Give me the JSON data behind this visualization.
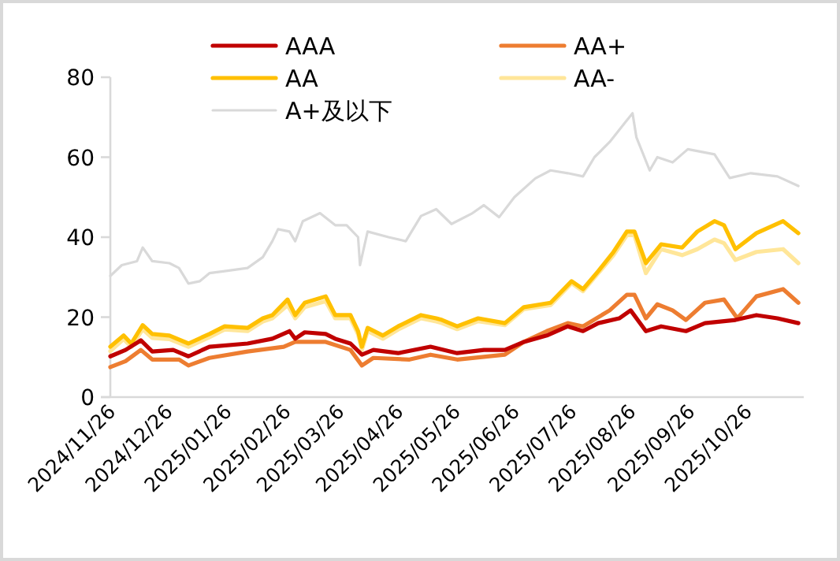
{
  "chart_data": {
    "type": "line",
    "legend": "top",
    "marker": "none",
    "line_style": "solid",
    "xlim": [
      "2024-11-26",
      "2025-11-24"
    ],
    "xticks": [
      {
        "value": "2024-11-26",
        "label": "2024/11/26"
      },
      {
        "value": "2024-12-26",
        "label": "2024/12/26"
      },
      {
        "value": "2025-01-26",
        "label": "2025/01/26"
      },
      {
        "value": "2025-02-26",
        "label": "2025/02/26"
      },
      {
        "value": "2025-03-26",
        "label": "2025/03/26"
      },
      {
        "value": "2025-04-26",
        "label": "2025/04/26"
      },
      {
        "value": "2025-05-26",
        "label": "2025/05/26"
      },
      {
        "value": "2025-06-26",
        "label": "2025/06/26"
      },
      {
        "value": "2025-07-26",
        "label": "2025/07/26"
      },
      {
        "value": "2025-08-26",
        "label": "2025/08/26"
      },
      {
        "value": "2025-09-26",
        "label": "2025/09/26"
      },
      {
        "value": "2025-10-26",
        "label": "2025/10/26"
      }
    ],
    "ylim": [
      0,
      80
    ],
    "yticks": [
      0,
      20,
      40,
      60,
      80
    ],
    "series": [
      {
        "name": "AAA",
        "color": "#c00000",
        "x": [
          "2024-11-26",
          "2024-12-04",
          "2024-12-12",
          "2024-12-18",
          "2024-12-29",
          "2025-01-06",
          "2025-01-17",
          "2025-02-06",
          "2025-02-19",
          "2025-02-28",
          "2025-03-03",
          "2025-03-08",
          "2025-03-19",
          "2025-03-24",
          "2025-04-01",
          "2025-04-07",
          "2025-04-13",
          "2025-04-26",
          "2025-05-13",
          "2025-05-27",
          "2025-06-10",
          "2025-06-21",
          "2025-07-01",
          "2025-07-13",
          "2025-07-24",
          "2025-08-01",
          "2025-08-09",
          "2025-08-20",
          "2025-08-26",
          "2025-09-03",
          "2025-09-11",
          "2025-09-24",
          "2025-10-04",
          "2025-10-20",
          "2025-10-31",
          "2025-11-11",
          "2025-11-22"
        ],
        "values": [
          10.2,
          11.8,
          14.2,
          11.4,
          11.8,
          10.2,
          12.6,
          13.4,
          14.6,
          16.5,
          14.6,
          16.2,
          15.8,
          14.6,
          13.4,
          10.6,
          11.8,
          11,
          12.6,
          11,
          11.8,
          11.8,
          13.8,
          15.4,
          17.7,
          16.5,
          18.5,
          19.7,
          21.7,
          16.5,
          17.7,
          16.5,
          18.5,
          19.3,
          20.5,
          19.7,
          18.5
        ]
      },
      {
        "name": "AA+",
        "color": "#ed7d31",
        "x": [
          "2024-11-26",
          "2024-12-04",
          "2024-12-12",
          "2024-12-18",
          "2025-01-01",
          "2025-01-06",
          "2025-01-17",
          "2025-02-06",
          "2025-02-25",
          "2025-03-03",
          "2025-03-19",
          "2025-04-01",
          "2025-04-07",
          "2025-04-13",
          "2025-05-02",
          "2025-05-13",
          "2025-05-27",
          "2025-06-21",
          "2025-07-01",
          "2025-07-13",
          "2025-07-24",
          "2025-08-01",
          "2025-08-15",
          "2025-08-24",
          "2025-08-28",
          "2025-09-03",
          "2025-09-09",
          "2025-09-17",
          "2025-09-24",
          "2025-10-04",
          "2025-10-14",
          "2025-10-21",
          "2025-10-31",
          "2025-11-14",
          "2025-11-22"
        ],
        "values": [
          7.5,
          9,
          11.8,
          9.4,
          9.4,
          7.9,
          9.8,
          11.4,
          12.6,
          13.8,
          13.8,
          11.8,
          7.9,
          9.8,
          9.4,
          10.6,
          9.4,
          10.6,
          13.8,
          16.5,
          18.5,
          17.7,
          21.7,
          25.6,
          25.6,
          19.7,
          23.2,
          21.7,
          19.3,
          23.6,
          24.4,
          19.7,
          25.2,
          27,
          23.6
        ]
      },
      {
        "name": "AA",
        "color": "#ffc000",
        "x": [
          "2024-11-26",
          "2024-12-03",
          "2024-12-07",
          "2024-12-13",
          "2024-12-18",
          "2024-12-27",
          "2025-01-06",
          "2025-01-17",
          "2025-01-25",
          "2025-02-06",
          "2025-02-14",
          "2025-02-19",
          "2025-02-27",
          "2025-03-03",
          "2025-03-08",
          "2025-03-19",
          "2025-03-24",
          "2025-04-01",
          "2025-04-05",
          "2025-04-07",
          "2025-04-10",
          "2025-04-18",
          "2025-04-26",
          "2025-05-08",
          "2025-05-16",
          "2025-05-19",
          "2025-05-27",
          "2025-06-07",
          "2025-06-21",
          "2025-07-01",
          "2025-07-15",
          "2025-07-26",
          "2025-08-01",
          "2025-08-09",
          "2025-08-17",
          "2025-08-24",
          "2025-08-28",
          "2025-09-03",
          "2025-09-11",
          "2025-09-22",
          "2025-09-30",
          "2025-10-09",
          "2025-10-14",
          "2025-10-20",
          "2025-10-31",
          "2025-11-14",
          "2025-11-22"
        ],
        "values": [
          12.6,
          15.4,
          13.4,
          18,
          15.8,
          15.4,
          13.4,
          15.8,
          17.7,
          17.3,
          19.7,
          20.5,
          24.4,
          20.5,
          23.6,
          25.2,
          20.5,
          20.5,
          16.5,
          12.6,
          17.3,
          15.4,
          17.7,
          20.5,
          19.7,
          19.3,
          17.7,
          19.7,
          18.5,
          22.5,
          23.6,
          29,
          27,
          31.5,
          36.3,
          41.4,
          41.4,
          33.5,
          38.2,
          37.4,
          41.4,
          44,
          43,
          37,
          41,
          44,
          41
        ]
      },
      {
        "name": "AA-",
        "color": "#ffe699",
        "x": [
          "2024-11-26",
          "2024-12-03",
          "2024-12-07",
          "2024-12-13",
          "2024-12-18",
          "2024-12-27",
          "2025-01-06",
          "2025-01-17",
          "2025-01-25",
          "2025-02-06",
          "2025-02-14",
          "2025-02-19",
          "2025-02-27",
          "2025-03-03",
          "2025-03-08",
          "2025-03-19",
          "2025-03-24",
          "2025-04-01",
          "2025-04-05",
          "2025-04-07",
          "2025-04-10",
          "2025-04-18",
          "2025-04-26",
          "2025-05-08",
          "2025-05-16",
          "2025-05-19",
          "2025-05-27",
          "2025-06-07",
          "2025-06-21",
          "2025-07-01",
          "2025-07-15",
          "2025-07-26",
          "2025-08-01",
          "2025-08-09",
          "2025-08-17",
          "2025-08-24",
          "2025-08-28",
          "2025-09-03",
          "2025-09-11",
          "2025-09-22",
          "2025-09-30",
          "2025-10-09",
          "2025-10-14",
          "2025-10-20",
          "2025-10-31",
          "2025-11-14",
          "2025-11-22"
        ],
        "values": [
          11.5,
          14.5,
          12.6,
          17,
          14.8,
          14.5,
          12.6,
          15,
          16.9,
          16.5,
          18.9,
          19.7,
          23,
          19.7,
          22.5,
          24,
          19.7,
          19.7,
          15.7,
          11.8,
          16.5,
          14.6,
          16.9,
          19.7,
          18.9,
          18.5,
          17,
          19,
          18,
          22,
          23,
          28.5,
          26.5,
          31,
          35.5,
          40.5,
          40.5,
          31,
          37,
          35.5,
          37,
          39.4,
          38.5,
          34.3,
          36.3,
          37,
          33.5
        ]
      },
      {
        "name": "A+及以下",
        "color": "#d9d9d9",
        "x": [
          "2024-11-26",
          "2024-12-02",
          "2024-12-10",
          "2024-12-13",
          "2024-12-18",
          "2024-12-27",
          "2025-01-01",
          "2025-01-06",
          "2025-01-12",
          "2025-01-17",
          "2025-01-25",
          "2025-02-06",
          "2025-02-14",
          "2025-02-19",
          "2025-02-22",
          "2025-02-28",
          "2025-03-03",
          "2025-03-07",
          "2025-03-16",
          "2025-03-24",
          "2025-03-30",
          "2025-04-05",
          "2025-04-06",
          "2025-04-10",
          "2025-04-21",
          "2025-04-30",
          "2025-05-08",
          "2025-05-16",
          "2025-05-24",
          "2025-06-04",
          "2025-06-10",
          "2025-06-18",
          "2025-06-26",
          "2025-07-07",
          "2025-07-15",
          "2025-07-24",
          "2025-08-01",
          "2025-08-07",
          "2025-08-15",
          "2025-08-23",
          "2025-08-27",
          "2025-08-29",
          "2025-09-05",
          "2025-09-09",
          "2025-09-17",
          "2025-09-25",
          "2025-10-09",
          "2025-10-17",
          "2025-10-28",
          "2025-11-11",
          "2025-11-22"
        ],
        "values": [
          30.3,
          33,
          34,
          37.4,
          34,
          33.5,
          32.3,
          28.4,
          29,
          31,
          31.5,
          32.3,
          35,
          39,
          42,
          41.4,
          39,
          44,
          46,
          43,
          43,
          40,
          33,
          41.4,
          40,
          39,
          45.3,
          47,
          43.3,
          46,
          48,
          45,
          50,
          54.7,
          56.7,
          56,
          55.2,
          60,
          63.8,
          68.6,
          71,
          65,
          56.7,
          60,
          58.7,
          62,
          60.7,
          54.8,
          56,
          55.2,
          52.8
        ]
      }
    ]
  }
}
